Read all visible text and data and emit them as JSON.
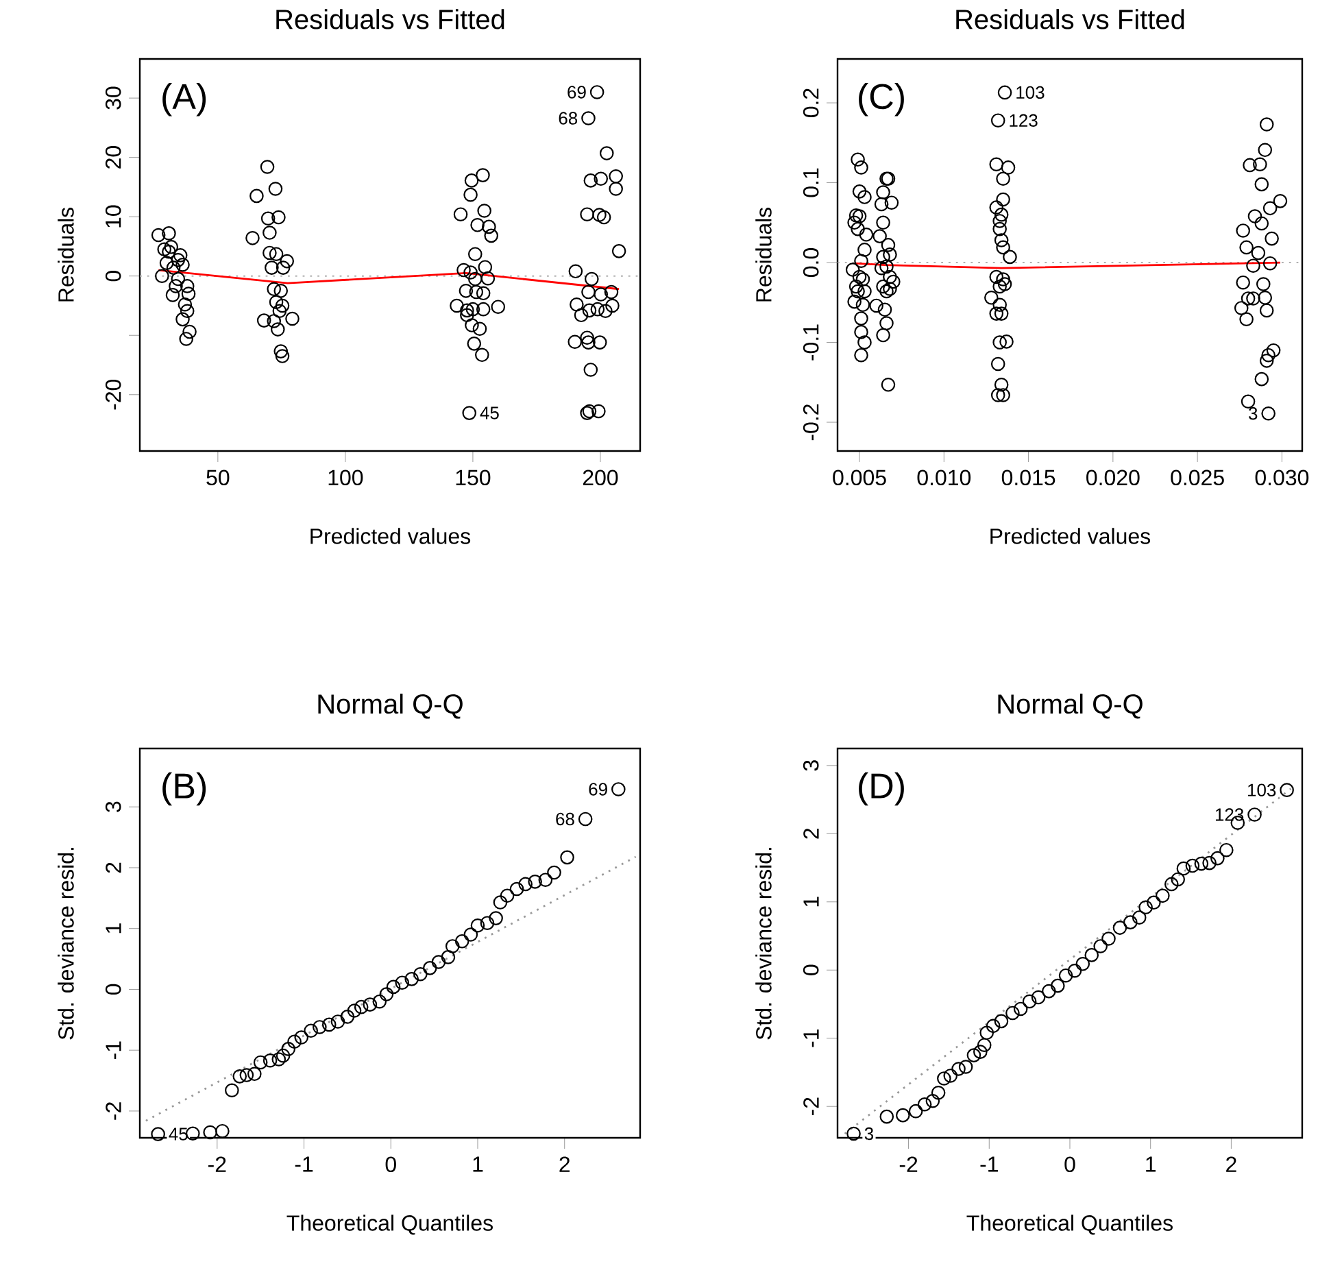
{
  "chart_data": [
    {
      "type": "scatter",
      "title": "Residuals vs Fitted",
      "xlabel": "Predicted values",
      "ylabel": "Residuals",
      "annotations": [
        "(A)",
        {
          "text": "69",
          "x": 198.7,
          "y": 31.0
        },
        {
          "text": "68",
          "x": 195.3,
          "y": 26.6
        },
        {
          "text": "45",
          "x": 148.6,
          "y": -23.1
        }
      ],
      "xlim": [
        19.4,
        215.6
      ],
      "ylim": [
        -29.5,
        36.6
      ],
      "xticks": [
        50,
        100,
        150,
        200
      ],
      "yticks": [
        -20,
        {
          "value": -10,
          "label": null
        },
        0,
        10,
        20,
        30
      ],
      "ref_lines": [
        {
          "axis": "y",
          "value": 0,
          "color": "#b0b0b0",
          "line_style": "dotted"
        }
      ],
      "series": [
        {
          "color": "#000000",
          "marker": "circle",
          "x": [
            26.7,
            30.8,
            29.0,
            31.7,
            35.3,
            29.9,
            36.2,
            32.6,
            28.1,
            34.4,
            33.5,
            38.0,
            38.5,
            32.3,
            37.1,
            38.0,
            36.2,
            38.9,
            37.6,
            30.8,
            34.4,
            69.4,
            65.2,
            72.6,
            69.7,
            73.8,
            70.3,
            63.6,
            70.3,
            72.9,
            77.1,
            71.1,
            75.6,
            72.0,
            74.7,
            72.9,
            75.3,
            74.2,
            68.1,
            72.0,
            79.2,
            73.5,
            74.7,
            75.3,
            153.9,
            149.5,
            149.1,
            145.2,
            154.5,
            151.8,
            156.3,
            157.2,
            150.9,
            146.4,
            154.8,
            149.1,
            150.9,
            155.9,
            147.3,
            151.3,
            154.1,
            143.7,
            147.7,
            150.0,
            154.1,
            159.9,
            147.7,
            149.6,
            152.7,
            150.5,
            153.6,
            148.6,
            198.7,
            195.3,
            202.5,
            196.2,
            200.2,
            206.1,
            206.1,
            194.8,
            199.6,
            201.4,
            207.3,
            190.3,
            196.6,
            195.3,
            200.2,
            204.3,
            190.7,
            192.5,
            195.7,
            198.9,
            202.0,
            204.7,
            190.0,
            195.3,
            199.8,
            194.8,
            196.2,
            195.7,
            199.3,
            194.8
          ],
          "values": [
            6.9,
            7.2,
            4.5,
            4.9,
            3.5,
            2.2,
            1.9,
            1.4,
            0,
            -0.5,
            -1.7,
            -1.7,
            -3.0,
            -3.2,
            -4.8,
            -5.9,
            -7.3,
            -9.4,
            -10.6,
            4.1,
            2.7,
            18.4,
            13.5,
            14.7,
            9.7,
            9.9,
            7.3,
            6.4,
            3.9,
            3.7,
            2.5,
            1.4,
            1.4,
            -2.2,
            -2.5,
            -4.4,
            -5.0,
            -5.9,
            -7.5,
            -7.6,
            -7.2,
            -9.0,
            -12.7,
            -13.5,
            17.0,
            16.1,
            13.7,
            10.4,
            11.0,
            8.6,
            8.3,
            6.8,
            3.7,
            1.0,
            1.5,
            0.6,
            -0.5,
            -0.4,
            -2.5,
            -2.7,
            -2.9,
            -5.0,
            -5.8,
            -5.6,
            -5.6,
            -5.2,
            -6.6,
            -8.3,
            -8.9,
            -11.4,
            -13.3,
            -23.1,
            31.0,
            26.6,
            20.7,
            16.1,
            16.4,
            16.8,
            14.7,
            10.4,
            10.3,
            9.9,
            4.2,
            0.8,
            -0.5,
            -2.7,
            -3.1,
            -2.7,
            -4.8,
            -6.6,
            -5.8,
            -5.6,
            -5.9,
            -5.0,
            -11.1,
            -11.2,
            -11.2,
            -10.4,
            -15.8,
            -22.8,
            -22.8,
            -23.1
          ]
        },
        {
          "type": "line",
          "color": "#ff0000",
          "line_style": "solid",
          "x": [
            26.7,
            77.4,
            147.3,
            207.3
          ],
          "values": [
            1.0,
            -1.2,
            0.5,
            -2.2
          ]
        }
      ]
    },
    {
      "type": "scatter",
      "title": "Residuals vs Fitted",
      "xlabel": "Predicted values",
      "ylabel": "Residuals",
      "annotations": [
        "(C)",
        {
          "text": "103",
          "x": 0.0136,
          "y": 0.213
        },
        {
          "text": "123",
          "x": 0.0132,
          "y": 0.178
        },
        {
          "text": "3",
          "x": 0.0292,
          "y": -0.189
        }
      ],
      "xlim": [
        0.0037,
        0.0312
      ],
      "ylim": [
        -0.236,
        0.255
      ],
      "xticks": [
        0.005,
        {
          "value": 0.01,
          "label": "0.010"
        },
        0.015,
        {
          "value": 0.02,
          "label": "0.020"
        },
        0.025,
        {
          "value": 0.03,
          "label": "0.030"
        }
      ],
      "yticks": [
        -0.2,
        -0.1,
        {
          "value": 0,
          "label": "0.0"
        },
        0.1,
        0.2
      ],
      "ref_lines": [
        {
          "axis": "y",
          "value": 0,
          "color": "#b0b0b0",
          "line_style": "dotted"
        }
      ],
      "series": [
        {
          "color": "#000000",
          "marker": "circle",
          "x": [
            0.0049,
            0.0051,
            0.005,
            0.0053,
            0.0048,
            0.005,
            0.0047,
            0.0049,
            0.0054,
            0.0053,
            0.0051,
            0.0046,
            0.005,
            0.0048,
            0.0052,
            0.0049,
            0.0053,
            0.0047,
            0.0052,
            0.0051,
            0.0051,
            0.0053,
            0.0051,
            0.0066,
            0.0064,
            0.0067,
            0.0069,
            0.0063,
            0.0064,
            0.0062,
            0.0067,
            0.0068,
            0.0064,
            0.0066,
            0.0063,
            0.0068,
            0.007,
            0.0066,
            0.0064,
            0.0068,
            0.006,
            0.0065,
            0.0066,
            0.0064,
            0.0067,
            0.0136,
            0.0132,
            0.0131,
            0.0138,
            0.0135,
            0.0135,
            0.0131,
            0.0134,
            0.0133,
            0.0133,
            0.0134,
            0.0135,
            0.0139,
            0.0131,
            0.0135,
            0.0133,
            0.0136,
            0.0128,
            0.0133,
            0.0131,
            0.0134,
            0.0137,
            0.0133,
            0.0132,
            0.0134,
            0.0132,
            0.0135,
            0.0291,
            0.029,
            0.0281,
            0.0287,
            0.0288,
            0.0299,
            0.0293,
            0.0284,
            0.0288,
            0.0277,
            0.0294,
            0.0279,
            0.0286,
            0.0293,
            0.0283,
            0.0277,
            0.0289,
            0.028,
            0.0283,
            0.029,
            0.0276,
            0.0279,
            0.0291,
            0.0295,
            0.0292,
            0.0291,
            0.0288,
            0.028,
            0.0292
          ],
          "values": [
            0.129,
            0.119,
            0.089,
            0.082,
            0.059,
            0.058,
            0.05,
            0.042,
            0.035,
            0.016,
            0.002,
            -0.009,
            -0.018,
            -0.03,
            -0.021,
            -0.036,
            -0.036,
            -0.049,
            -0.053,
            -0.07,
            -0.087,
            -0.1,
            -0.116,
            0.105,
            0.088,
            0.105,
            0.075,
            0.073,
            0.05,
            0.033,
            0.022,
            0.01,
            0.007,
            -0.005,
            -0.007,
            -0.018,
            -0.024,
            -0.036,
            -0.03,
            -0.033,
            -0.054,
            -0.059,
            -0.076,
            -0.091,
            -0.153,
            0.213,
            0.178,
            0.123,
            0.119,
            0.105,
            0.079,
            0.069,
            0.06,
            0.052,
            0.042,
            0.028,
            0.019,
            0.007,
            -0.018,
            -0.021,
            -0.03,
            -0.027,
            -0.044,
            -0.053,
            -0.064,
            -0.064,
            -0.099,
            -0.1,
            -0.127,
            -0.153,
            -0.166,
            -0.166,
            0.173,
            0.141,
            0.122,
            0.123,
            0.098,
            0.077,
            0.068,
            0.058,
            0.049,
            0.04,
            0.03,
            0.019,
            0.012,
            -0.001,
            -0.004,
            -0.025,
            -0.027,
            -0.045,
            -0.045,
            -0.044,
            -0.057,
            -0.071,
            -0.06,
            -0.11,
            -0.116,
            -0.123,
            -0.146,
            -0.174,
            -0.189
          ]
        },
        {
          "type": "line",
          "color": "#ff0000",
          "line_style": "solid",
          "x": [
            0.0047,
            0.0065,
            0.0134,
            0.0299
          ],
          "values": [
            -0.001,
            -0.003,
            -0.007,
            0.0
          ]
        }
      ]
    },
    {
      "type": "scatter",
      "title": "Normal Q-Q",
      "xlabel": "Theoretical Quantiles",
      "ylabel": "Std. deviance resid.",
      "annotations": [
        "(B)",
        {
          "text": "69",
          "x": 2.62,
          "y": 3.29
        },
        {
          "text": "68",
          "x": 2.24,
          "y": 2.8
        },
        {
          "text": "45",
          "x": -2.68,
          "y": -2.38
        }
      ],
      "xlim": [
        -2.89,
        2.87
      ],
      "ylim": [
        -2.44,
        3.96
      ],
      "xticks": [
        -2,
        -1,
        0,
        1,
        2
      ],
      "yticks": [
        -2,
        -1,
        0,
        1,
        2,
        3
      ],
      "series": [
        {
          "color": "#000000",
          "marker": "circle",
          "x": [
            -2.68,
            -2.28,
            -2.08,
            -1.94,
            -1.83,
            -1.74,
            -1.66,
            -1.57,
            -1.5,
            -1.39,
            -1.29,
            -1.24,
            -1.18,
            -1.11,
            -1.03,
            -0.92,
            -0.82,
            -0.71,
            -0.61,
            -0.5,
            -0.42,
            -0.34,
            -0.24,
            -0.13,
            -0.05,
            0.03,
            0.13,
            0.24,
            0.34,
            0.45,
            0.55,
            0.66,
            0.71,
            0.82,
            0.92,
            1.0,
            1.11,
            1.21,
            1.26,
            1.34,
            1.45,
            1.55,
            1.66,
            1.78,
            1.88,
            2.03,
            2.24,
            2.62
          ],
          "values": [
            -2.38,
            -2.37,
            -2.35,
            -2.33,
            -1.66,
            -1.43,
            -1.41,
            -1.39,
            -1.2,
            -1.17,
            -1.15,
            -1.09,
            -0.98,
            -0.86,
            -0.79,
            -0.68,
            -0.62,
            -0.58,
            -0.53,
            -0.45,
            -0.35,
            -0.29,
            -0.25,
            -0.2,
            -0.08,
            0.04,
            0.11,
            0.17,
            0.25,
            0.35,
            0.45,
            0.53,
            0.71,
            0.79,
            0.9,
            1.05,
            1.09,
            1.17,
            1.43,
            1.54,
            1.65,
            1.73,
            1.77,
            1.8,
            1.92,
            2.17,
            2.8,
            3.29
          ]
        },
        {
          "type": "line",
          "color": "#999999",
          "line_style": "dotted",
          "x": [
            -2.82,
            2.82
          ],
          "values": [
            -2.16,
            2.18
          ]
        }
      ]
    },
    {
      "type": "scatter",
      "title": "Normal Q-Q",
      "xlabel": "Theoretical Quantiles",
      "ylabel": "Std. deviance resid.",
      "annotations": [
        "(D)",
        {
          "text": "103",
          "x": 2.69,
          "y": 2.64
        },
        {
          "text": "123",
          "x": 2.29,
          "y": 2.28
        },
        {
          "text": "3",
          "x": -2.68,
          "y": -2.4
        }
      ],
      "xlim": [
        -2.88,
        2.88
      ],
      "ylim": [
        -2.46,
        3.25
      ],
      "xticks": [
        -2,
        -1,
        0,
        1,
        2
      ],
      "yticks": [
        -2,
        -1,
        0,
        1,
        2,
        3
      ],
      "series": [
        {
          "color": "#000000",
          "marker": "circle",
          "x": [
            -2.68,
            -2.27,
            -2.07,
            -1.91,
            -1.8,
            -1.7,
            -1.63,
            -1.56,
            -1.48,
            -1.38,
            -1.29,
            -1.19,
            -1.11,
            -1.06,
            -1.03,
            -0.95,
            -0.85,
            -0.71,
            -0.61,
            -0.5,
            -0.39,
            -0.26,
            -0.15,
            -0.05,
            0.06,
            0.16,
            0.27,
            0.38,
            0.48,
            0.62,
            0.75,
            0.86,
            0.94,
            1.04,
            1.15,
            1.26,
            1.34,
            1.41,
            1.52,
            1.63,
            1.73,
            1.83,
            1.94,
            2.08,
            2.29,
            2.69
          ],
          "values": [
            -2.4,
            -2.15,
            -2.13,
            -2.07,
            -1.97,
            -1.92,
            -1.8,
            -1.59,
            -1.55,
            -1.45,
            -1.42,
            -1.25,
            -1.2,
            -1.1,
            -0.92,
            -0.82,
            -0.75,
            -0.63,
            -0.57,
            -0.46,
            -0.4,
            -0.31,
            -0.23,
            -0.08,
            -0.01,
            0.09,
            0.22,
            0.35,
            0.46,
            0.62,
            0.7,
            0.77,
            0.92,
            0.99,
            1.09,
            1.26,
            1.33,
            1.49,
            1.53,
            1.56,
            1.57,
            1.64,
            1.76,
            2.16,
            2.28,
            2.64
          ]
        },
        {
          "type": "line",
          "color": "#999999",
          "line_style": "dotted",
          "x": [
            -2.79,
            2.74
          ],
          "values": [
            -2.4,
            2.66
          ]
        }
      ]
    }
  ]
}
